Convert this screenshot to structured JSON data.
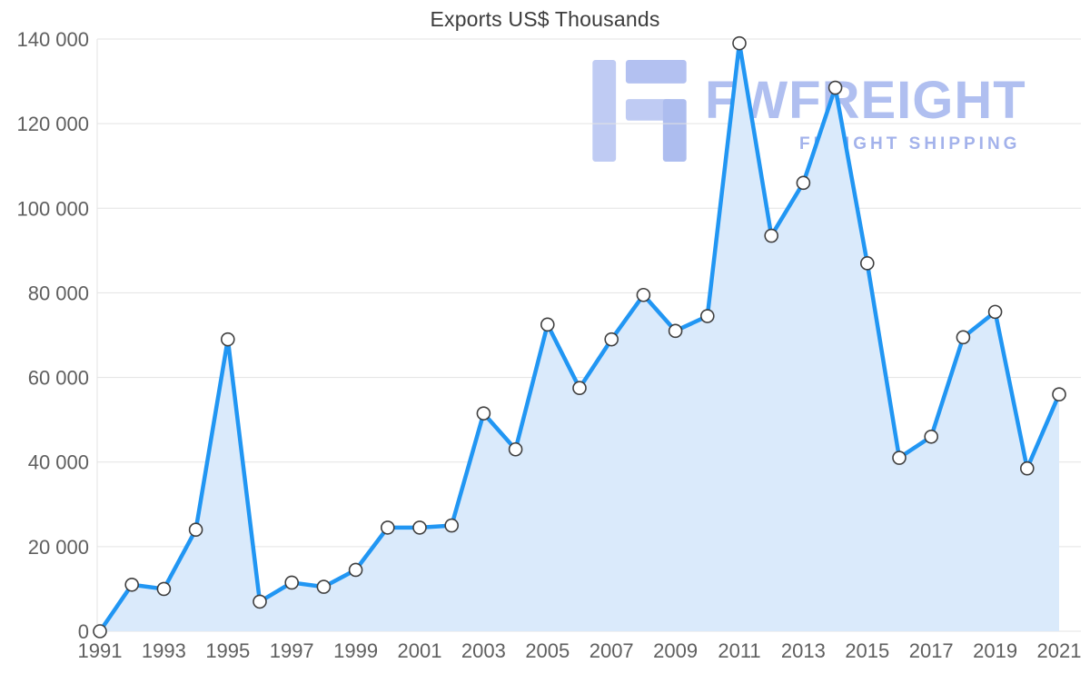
{
  "title": "Exports US$ Thousands",
  "watermark": {
    "brand": "FWFREIGHT",
    "tagline": "FREIGHT SHIPPING",
    "icon": "fwfreight-logo-icon",
    "brand_color": "#a3b5ee",
    "tagline_color": "#93a5e8"
  },
  "chart_data": {
    "type": "area",
    "title": "Exports US$ Thousands",
    "xlabel": "",
    "ylabel": "",
    "x": [
      1991,
      1992,
      1993,
      1994,
      1995,
      1996,
      1997,
      1998,
      1999,
      2000,
      2001,
      2002,
      2003,
      2004,
      2005,
      2006,
      2007,
      2008,
      2009,
      2010,
      2011,
      2012,
      2013,
      2014,
      2015,
      2016,
      2017,
      2018,
      2019,
      2020,
      2021
    ],
    "values": [
      0,
      11000,
      10000,
      24000,
      69000,
      7000,
      11500,
      10500,
      14500,
      24500,
      24500,
      25000,
      51500,
      43000,
      72500,
      57500,
      69000,
      79500,
      71000,
      74500,
      139000,
      93500,
      106000,
      128500,
      87000,
      41000,
      46000,
      69500,
      75500,
      38500,
      56000
    ],
    "ylim": [
      0,
      140000
    ],
    "y_ticks": [
      0,
      20000,
      40000,
      60000,
      80000,
      100000,
      120000,
      140000
    ],
    "x_tick_labels": [
      "1991",
      "1993",
      "1995",
      "1997",
      "1999",
      "2001",
      "2003",
      "2005",
      "2007",
      "2009",
      "2011",
      "2013",
      "2015",
      "2017",
      "2019",
      "2021"
    ],
    "grid": "horizontal",
    "legend": "none",
    "line_color": "#2196f3",
    "fill_color": "#daeafb",
    "marker_fill": "#ffffff",
    "marker_stroke": "#3f3f3f",
    "grid_color": "#e3e3e3"
  }
}
